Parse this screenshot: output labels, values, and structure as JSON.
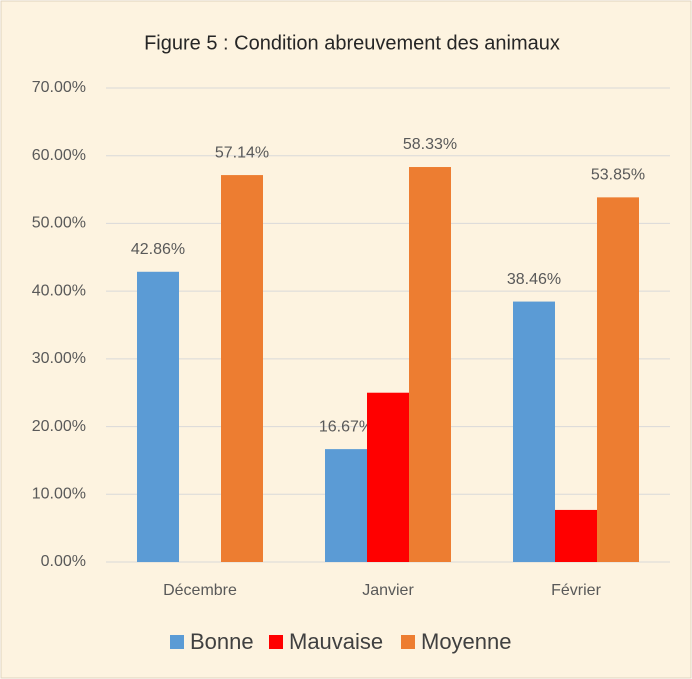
{
  "chart_data": {
    "type": "bar",
    "title": "Figure 5 : Condition abreuvement des animaux",
    "categories": [
      "Décembre",
      "Janvier",
      "Février"
    ],
    "series": [
      {
        "name": "Bonne",
        "color": "#5b9bd5",
        "values": [
          42.86,
          16.67,
          38.46
        ],
        "value_labels": [
          "42.86%",
          "16.67%",
          "38.46%"
        ]
      },
      {
        "name": "Mauvaise",
        "color": "#ff0000",
        "values": [
          0,
          25,
          7.69
        ]
      },
      {
        "name": "Moyenne",
        "color": "#ed7d31",
        "values": [
          57.14,
          58.33,
          53.85
        ],
        "value_labels": [
          "57.14%",
          "58.33%",
          "53.85%"
        ]
      }
    ],
    "ylim": [
      0,
      70
    ],
    "yticks": [
      {
        "value": 0,
        "label": "0.00%"
      },
      {
        "value": 10,
        "label": "10.00%"
      },
      {
        "value": 20,
        "label": "20.00%"
      },
      {
        "value": 30,
        "label": "30.00%"
      },
      {
        "value": 40,
        "label": "40.00%"
      },
      {
        "value": 50,
        "label": "50.00%"
      },
      {
        "value": 60,
        "label": "60.00%"
      },
      {
        "value": 70,
        "label": "70.00%"
      }
    ],
    "grid": true,
    "legend": "bottom"
  }
}
